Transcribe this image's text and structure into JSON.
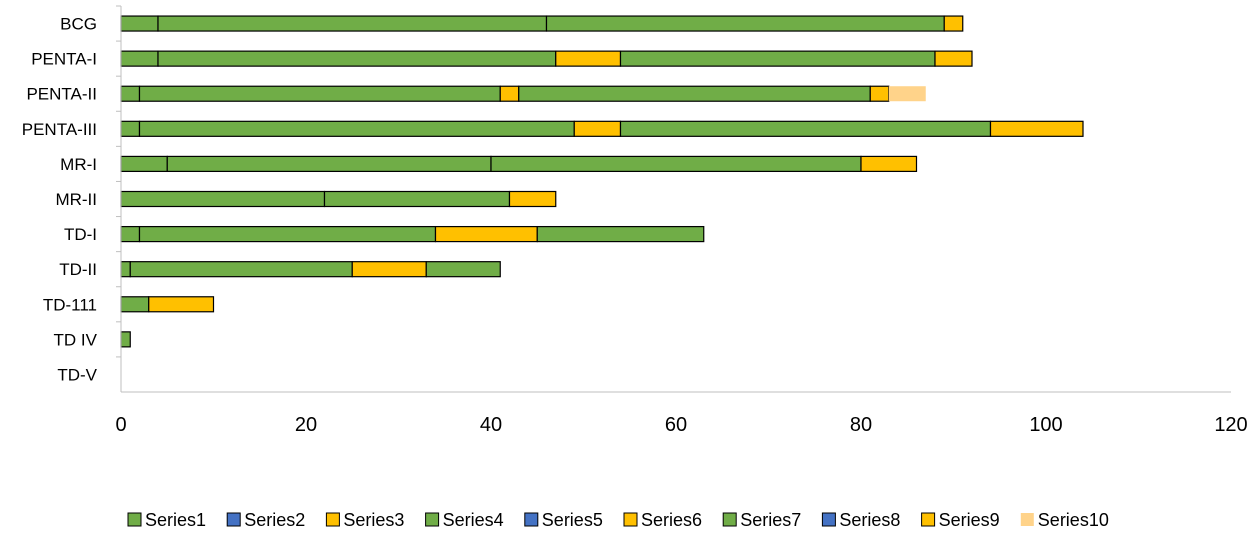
{
  "chart_data": {
    "type": "bar",
    "orientation": "horizontal",
    "stacked": true,
    "categories": [
      "BCG",
      "PENTA-I",
      "PENTA-II",
      "PENTA-III",
      "MR-I",
      "MR-II",
      "TD-I",
      "TD-II",
      "TD-111",
      "TD IV",
      "TD-V"
    ],
    "series": [
      {
        "name": "Series1",
        "color": "#70AD47",
        "values": [
          4,
          4,
          2,
          2,
          5,
          0,
          2,
          1,
          3,
          1,
          0
        ]
      },
      {
        "name": "Series2",
        "color": "#4472C4",
        "values": [
          0,
          0,
          0,
          0,
          0,
          0,
          0,
          0,
          0,
          0,
          0
        ]
      },
      {
        "name": "Series3",
        "color": "#FFC000",
        "values": [
          0,
          0,
          0,
          0,
          0,
          0,
          0,
          0,
          7,
          0,
          0
        ]
      },
      {
        "name": "Series4",
        "color": "#70AD47",
        "values": [
          42,
          43,
          39,
          47,
          35,
          22,
          32,
          24,
          0,
          0,
          0
        ]
      },
      {
        "name": "Series5",
        "color": "#4472C4",
        "values": [
          0,
          0,
          0,
          0,
          0,
          0,
          0,
          0,
          0,
          0,
          0
        ]
      },
      {
        "name": "Series6",
        "color": "#FFC000",
        "values": [
          0,
          7,
          2,
          5,
          0,
          0,
          11,
          8,
          0,
          0,
          0
        ]
      },
      {
        "name": "Series7",
        "color": "#70AD47",
        "values": [
          43,
          34,
          38,
          40,
          40,
          20,
          18,
          8,
          0,
          0,
          0
        ]
      },
      {
        "name": "Series8",
        "color": "#4472C4",
        "values": [
          0,
          0,
          0,
          0,
          0,
          0,
          0,
          0,
          0,
          0,
          0
        ]
      },
      {
        "name": "Series9",
        "color": "#FFC000",
        "values": [
          2,
          4,
          2,
          10,
          6,
          5,
          0,
          0,
          0,
          0,
          0
        ]
      },
      {
        "name": "Series10",
        "color": "#FFD38A",
        "values": [
          0,
          0,
          4,
          0,
          0,
          0,
          0,
          0,
          0,
          0,
          0
        ]
      }
    ],
    "xlim": [
      0,
      120
    ],
    "xticks": [
      "0",
      "20",
      "40",
      "60",
      "80",
      "100",
      "120"
    ],
    "grid": false,
    "legend_position": "bottom"
  }
}
